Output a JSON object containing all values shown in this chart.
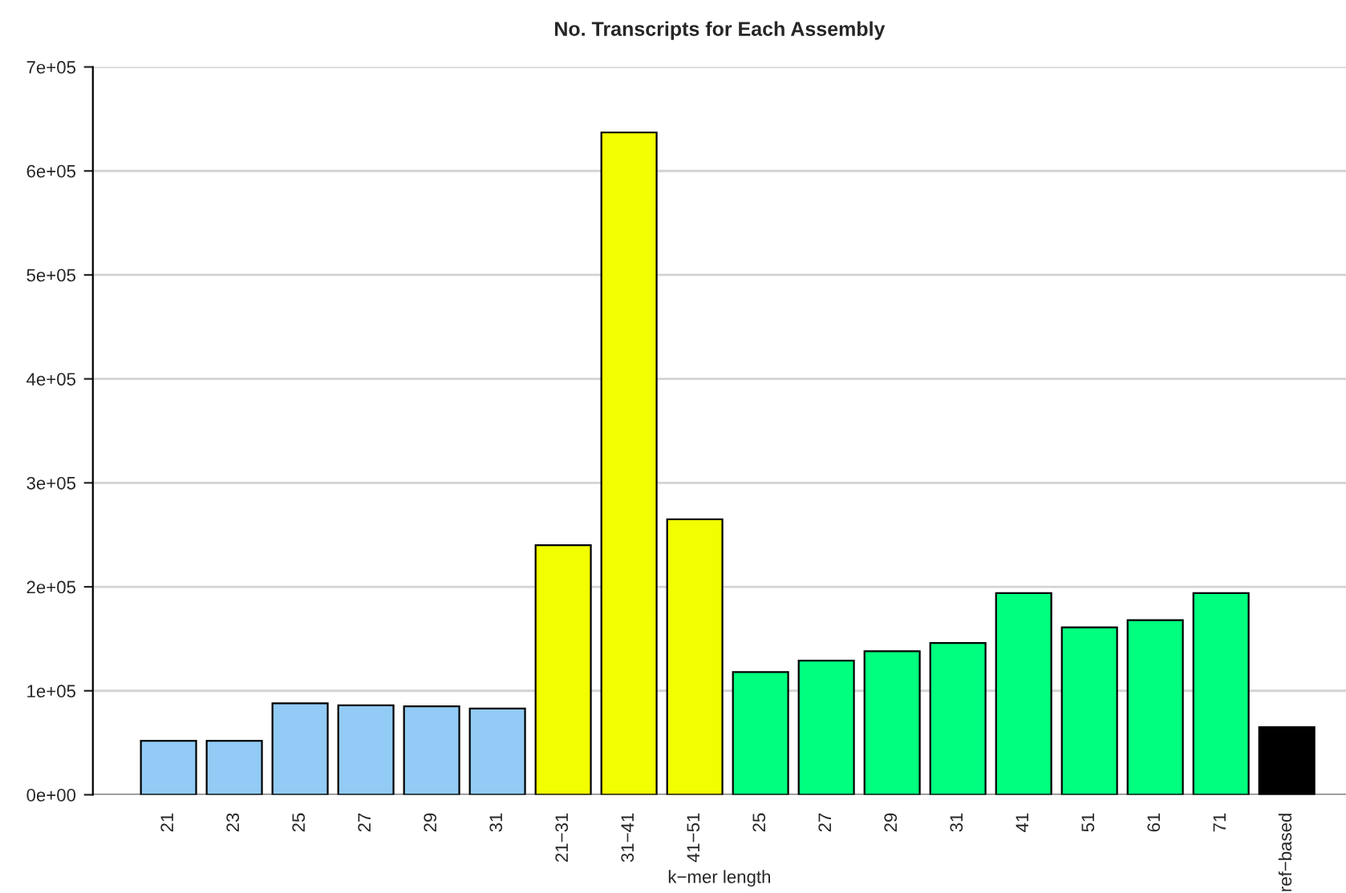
{
  "chart_data": {
    "type": "bar",
    "title": "No. Transcripts for Each Assembly",
    "xlabel": "k−mer length",
    "categories": [
      "21",
      "23",
      "25",
      "27",
      "29",
      "31",
      "21−31",
      "31−41",
      "41−51",
      "25",
      "27",
      "29",
      "31",
      "41",
      "51",
      "61",
      "71",
      "ref−based"
    ],
    "values": [
      52000,
      52000,
      88000,
      86000,
      85000,
      83000,
      240000,
      637000,
      265000,
      118000,
      129000,
      138000,
      146000,
      194000,
      161000,
      168000,
      194000,
      65000
    ],
    "colors": [
      "#92cbf5",
      "#92cbf5",
      "#92cbf5",
      "#92cbf5",
      "#92cbf5",
      "#92cbf5",
      "#f2ff00",
      "#f2ff00",
      "#f2ff00",
      "#00ff7f",
      "#00ff7f",
      "#00ff7f",
      "#00ff7f",
      "#00ff7f",
      "#00ff7f",
      "#00ff7f",
      "#00ff7f",
      "#000000"
    ],
    "ylim": [
      0,
      700000
    ],
    "yticks": [
      {
        "value": 0,
        "label": "0e+00"
      },
      {
        "value": 100000,
        "label": "1e+05"
      },
      {
        "value": 200000,
        "label": "2e+05"
      },
      {
        "value": 300000,
        "label": "3e+05"
      },
      {
        "value": 400000,
        "label": "4e+05"
      },
      {
        "value": 500000,
        "label": "5e+05"
      },
      {
        "value": 600000,
        "label": "6e+05"
      },
      {
        "value": 700000,
        "label": "7e+05"
      }
    ],
    "grid": "y"
  }
}
